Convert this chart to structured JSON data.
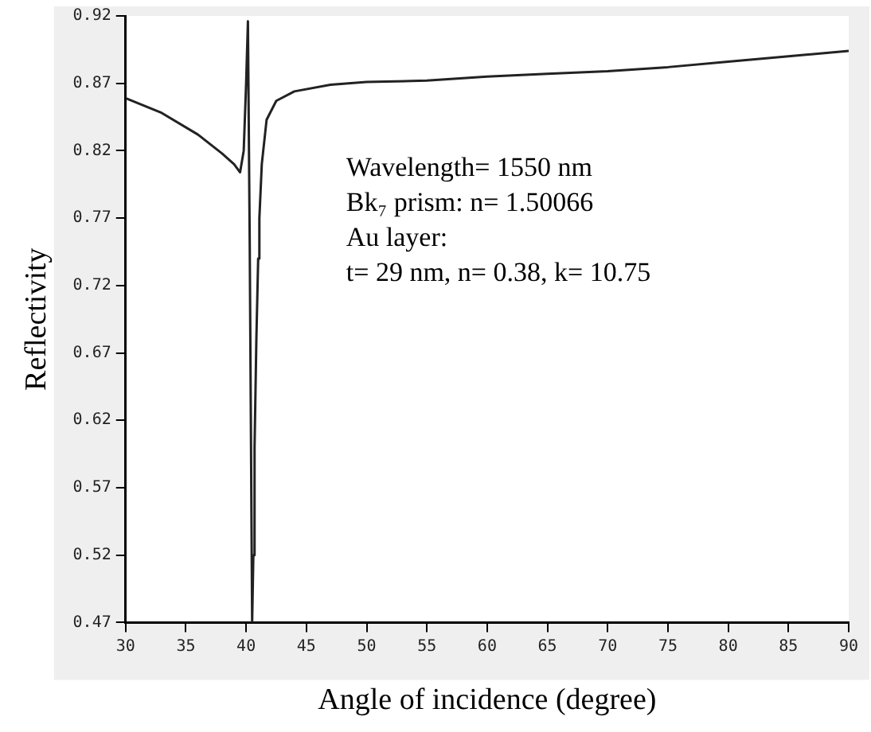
{
  "chart_data": {
    "type": "line",
    "xlabel": "Angle of incidence (degree)",
    "ylabel": "Reflectivity",
    "annotations": [
      "Wavelength= 1550 nm",
      "Bk₇ prism: n= 1.50066",
      "Au layer:",
      "t= 29 nm, n= 0.38, k= 10.75"
    ],
    "x": [
      30,
      33,
      36,
      38,
      39,
      39.5,
      39.8,
      40,
      40.15,
      40.3,
      40.5,
      40.6,
      40.7,
      40.85,
      41,
      41.1,
      41.3,
      41.7,
      42.5,
      44,
      47,
      50,
      55,
      60,
      65,
      70,
      75,
      80,
      85,
      90
    ],
    "series": [
      {
        "color": "#222222",
        "values": [
          0.859,
          0.848,
          0.832,
          0.818,
          0.81,
          0.804,
          0.82,
          0.87,
          0.916,
          0.75,
          0.47,
          0.52,
          0.6,
          0.68,
          0.74,
          0.77,
          0.81,
          0.843,
          0.857,
          0.864,
          0.869,
          0.871,
          0.872,
          0.875,
          0.877,
          0.879,
          0.882,
          0.886,
          0.89,
          0.894
        ]
      }
    ],
    "xlim": [
      30,
      90
    ],
    "xticks": [
      30,
      35,
      40,
      45,
      50,
      55,
      60,
      65,
      70,
      75,
      80,
      85,
      90
    ],
    "ylim": [
      0.47,
      0.92
    ],
    "yticks": [
      0.47,
      0.52,
      0.57,
      0.62,
      0.67,
      0.72,
      0.77,
      0.82,
      0.87,
      0.92
    ],
    "grid": false,
    "legend": false,
    "marker": "none",
    "line_style": "solid"
  }
}
